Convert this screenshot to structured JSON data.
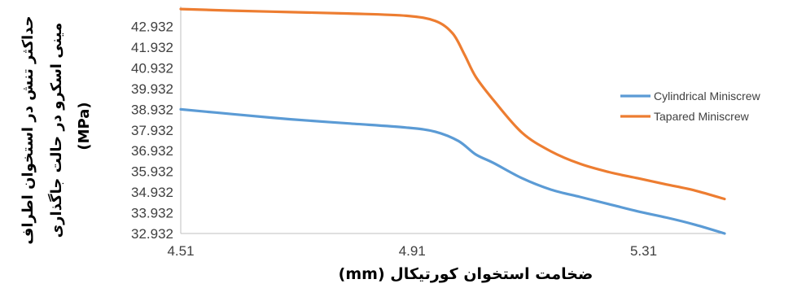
{
  "chart_data": {
    "type": "line",
    "xlabel": "ضخامت استخوان کورتیکال (mm)",
    "ylabel_lines": [
      "حداکثر تنش در استخوان اطراف",
      "مینی اسکرو در حالت جاگذاری",
      "(MPa)"
    ],
    "x_ticks": [
      "4.51",
      "4.91",
      "5.31"
    ],
    "y_ticks": [
      "32.932",
      "33.932",
      "34.932",
      "35.932",
      "36.932",
      "37.932",
      "38.932",
      "39.932",
      "40.932",
      "41.932",
      "42.932"
    ],
    "xlim": [
      4.51,
      5.45
    ],
    "ylim": [
      32.932,
      43.9
    ],
    "grid": false,
    "legend_position": "right",
    "series": [
      {
        "name": "Cylindrical Miniscrew",
        "color": "#5B9BD5",
        "x": [
          4.51,
          4.6,
          4.7,
          4.8,
          4.9,
          4.95,
          4.99,
          5.02,
          5.05,
          5.1,
          5.15,
          5.2,
          5.25,
          5.3,
          5.35,
          5.4,
          5.45
        ],
        "y": [
          38.93,
          38.7,
          38.45,
          38.25,
          38.05,
          37.85,
          37.4,
          36.75,
          36.35,
          35.6,
          35.05,
          34.7,
          34.35,
          34.0,
          33.7,
          33.35,
          32.932
        ]
      },
      {
        "name": "Tapared Miniscrew",
        "color": "#ED7D31",
        "x": [
          4.51,
          4.6,
          4.7,
          4.8,
          4.9,
          4.95,
          4.98,
          5.0,
          5.02,
          5.05,
          5.1,
          5.15,
          5.2,
          5.25,
          5.3,
          5.35,
          5.4,
          5.45
        ],
        "y": [
          43.78,
          43.7,
          43.63,
          43.56,
          43.45,
          43.2,
          42.6,
          41.6,
          40.5,
          39.4,
          37.8,
          36.9,
          36.3,
          35.9,
          35.6,
          35.3,
          35.0,
          34.6
        ]
      }
    ]
  }
}
